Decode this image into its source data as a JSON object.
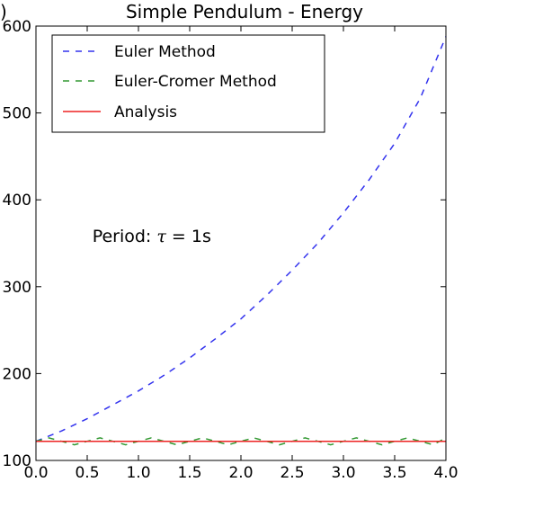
{
  "chart_data": {
    "type": "line",
    "title": "Simple Pendulum - Energy",
    "corner_glyph": ")",
    "xlabel": "",
    "ylabel": "",
    "xlim": [
      0,
      4
    ],
    "ylim": [
      100,
      600
    ],
    "x_ticks": [
      {
        "value": 0.0,
        "label": "0.0"
      },
      {
        "value": 0.5,
        "label": "0.5"
      },
      {
        "value": 1.0,
        "label": "1.0"
      },
      {
        "value": 1.5,
        "label": "1.5"
      },
      {
        "value": 2.0,
        "label": "2.0"
      },
      {
        "value": 2.5,
        "label": "2.5"
      },
      {
        "value": 3.0,
        "label": "3.0"
      },
      {
        "value": 3.5,
        "label": "3.5"
      },
      {
        "value": 4.0,
        "label": "4.0"
      }
    ],
    "y_ticks": [
      {
        "value": 100,
        "label": "100"
      },
      {
        "value": 200,
        "label": "200"
      },
      {
        "value": 300,
        "label": "300"
      },
      {
        "value": 400,
        "label": "400"
      },
      {
        "value": 500,
        "label": "500"
      },
      {
        "value": 600,
        "label": "600"
      }
    ],
    "grid": false,
    "legend_position": "top-left",
    "annotation": {
      "prefix": "Period:  ",
      "symbol": "τ",
      "suffix": " = 1s",
      "x": 0.55,
      "y": 360
    },
    "series": [
      {
        "name": "Euler Method",
        "color": "#3333ee",
        "style": "dashed",
        "x": [
          0.0,
          0.25,
          0.5,
          0.75,
          1.0,
          1.25,
          1.5,
          1.75,
          2.0,
          2.25,
          2.5,
          2.75,
          3.0,
          3.25,
          3.5,
          3.75,
          4.0
        ],
        "y": [
          122,
          134,
          148,
          164,
          180,
          198,
          218,
          240,
          263,
          290,
          319,
          350,
          385,
          423,
          465,
          517,
          588
        ]
      },
      {
        "name": "Euler-Cromer Method",
        "color": "#339933",
        "style": "dashed",
        "x": [
          0.0,
          0.125,
          0.25,
          0.375,
          0.5,
          0.625,
          0.75,
          0.875,
          1.0,
          1.125,
          1.25,
          1.375,
          1.5,
          1.625,
          1.75,
          1.875,
          2.0,
          2.125,
          2.25,
          2.375,
          2.5,
          2.625,
          2.75,
          2.875,
          3.0,
          3.125,
          3.25,
          3.375,
          3.5,
          3.625,
          3.75,
          3.875,
          4.0
        ],
        "y": [
          122,
          126,
          122,
          118,
          122,
          126,
          122,
          118,
          122,
          126,
          122,
          118,
          122,
          126,
          122,
          118,
          122,
          126,
          122,
          118,
          122,
          126,
          122,
          118,
          122,
          126,
          122,
          118,
          122,
          126,
          122,
          118,
          126
        ]
      },
      {
        "name": "Analysis",
        "color": "#ee2222",
        "style": "solid",
        "x": [
          0.0,
          4.0
        ],
        "y": [
          122,
          122
        ]
      }
    ]
  }
}
